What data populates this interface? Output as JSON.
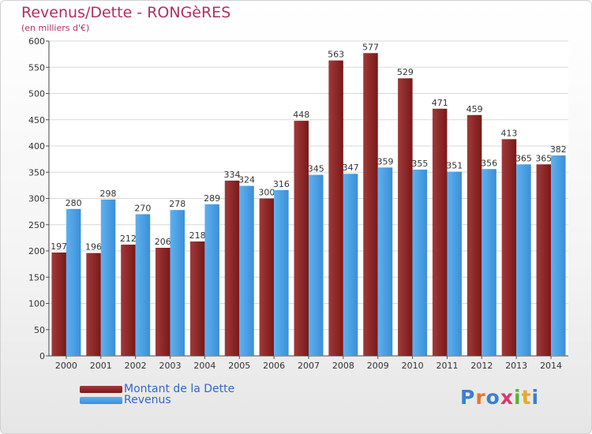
{
  "title": "Revenus/Dette - RONGèRES",
  "subtitle": "(en milliers d'€)",
  "logo_text": "Proxiti",
  "colors": {
    "debt": "#7a1818",
    "debt_light": "#a03a3a",
    "revenue": "#3a8fd8",
    "revenue_light": "#5fb0ee",
    "title": "#b03060",
    "legend_text": "#3366cc"
  },
  "chart_data": {
    "type": "bar",
    "title": "Revenus/Dette - RONGèRES",
    "subtitle": "(en milliers d'€)",
    "xlabel": "",
    "ylabel": "",
    "categories": [
      "2000",
      "2001",
      "2002",
      "2003",
      "2004",
      "2005",
      "2006",
      "2007",
      "2008",
      "2009",
      "2010",
      "2011",
      "2012",
      "2013",
      "2014"
    ],
    "series": [
      {
        "name": "Montant de la Dette",
        "values": [
          197,
          196,
          212,
          206,
          218,
          334,
          300,
          448,
          563,
          577,
          529,
          471,
          459,
          413,
          365
        ]
      },
      {
        "name": "Revenus",
        "values": [
          280,
          298,
          270,
          278,
          289,
          324,
          316,
          345,
          347,
          359,
          355,
          351,
          356,
          365,
          382
        ]
      }
    ],
    "ylim": [
      0,
      600
    ],
    "yticks": [
      0,
      50,
      100,
      150,
      200,
      250,
      300,
      350,
      400,
      450,
      500,
      550,
      600
    ],
    "grid": true,
    "legend_position": "bottom-left"
  }
}
